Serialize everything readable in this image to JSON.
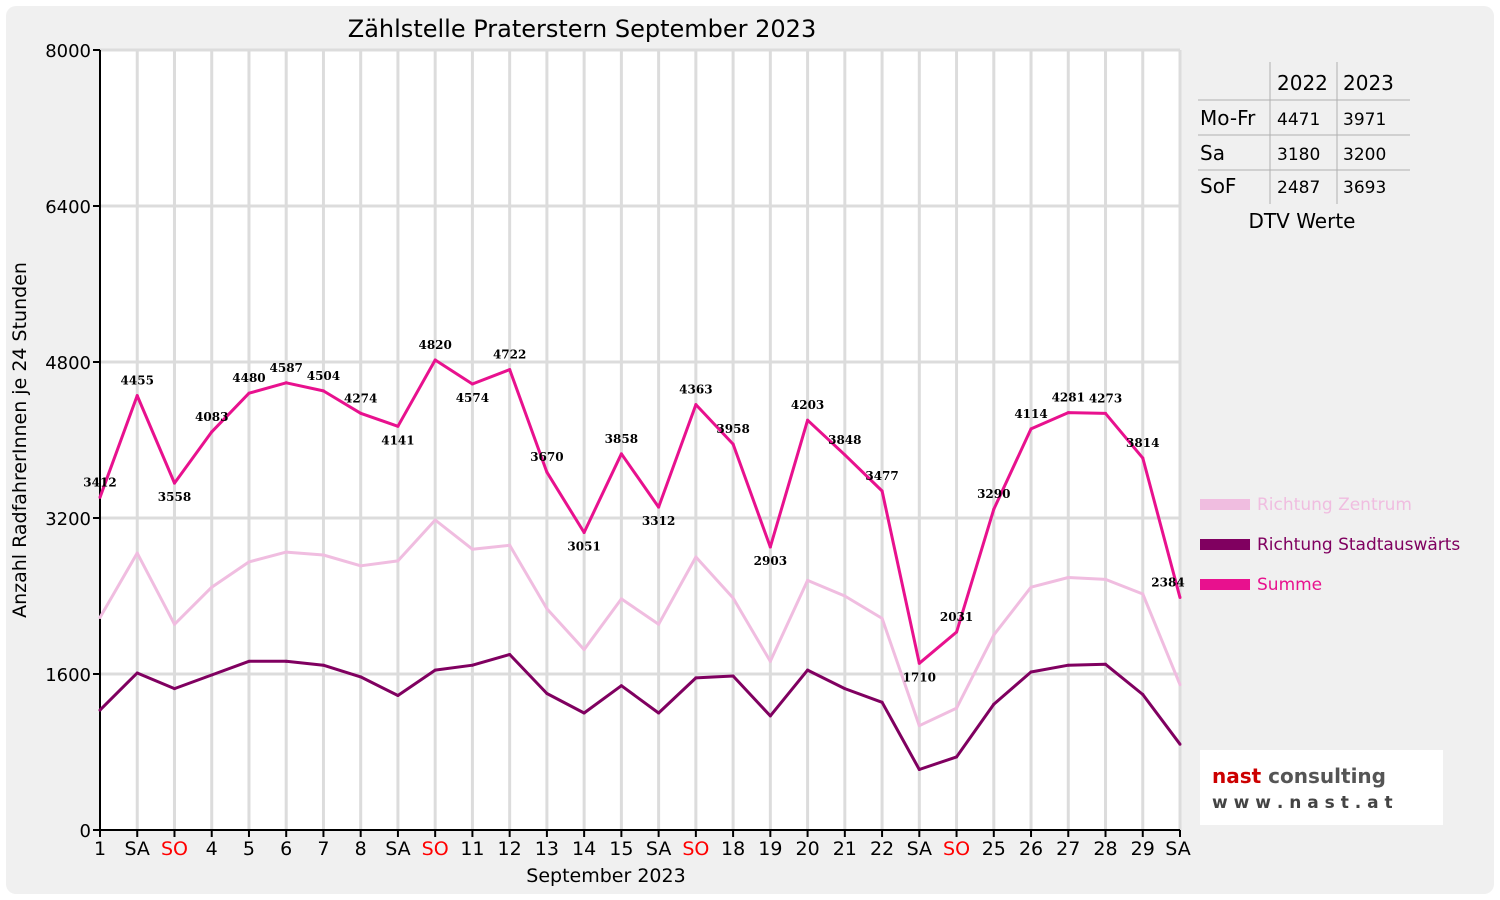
{
  "chart_data": {
    "type": "line",
    "title": "Zählstelle Praterstern September 2023",
    "xlabel": "September 2023",
    "ylabel": "Anzahl RadfahrerInnen je 24 Stunden",
    "ylim": [
      0,
      8000
    ],
    "yticks": [
      0,
      1600,
      3200,
      4800,
      6400,
      8000
    ],
    "grid": true,
    "legend_position": "right",
    "categories": [
      "1",
      "SA",
      "SO",
      "4",
      "5",
      "6",
      "7",
      "8",
      "SA",
      "SO",
      "11",
      "12",
      "13",
      "14",
      "15",
      "SA",
      "SO",
      "18",
      "19",
      "20",
      "21",
      "22",
      "SA",
      "SO",
      "25",
      "26",
      "27",
      "28",
      "29",
      "SA"
    ],
    "weekend_markers": {
      "SA": "#000000",
      "SO": "#ff0000"
    },
    "series": [
      {
        "name": "Richtung Zentrum",
        "color": "#f0bde0",
        "values": [
          2180,
          2840,
          2110,
          2490,
          2750,
          2850,
          2820,
          2710,
          2760,
          3180,
          2880,
          2920,
          2270,
          1850,
          2370,
          2110,
          2800,
          2380,
          1730,
          2560,
          2400,
          2170,
          1070,
          1250,
          2000,
          2490,
          2590,
          2570,
          2420,
          1490
        ]
      },
      {
        "name": "Richtung Stadtauswärts",
        "color": "#800060",
        "values": [
          1230,
          1610,
          1450,
          1590,
          1730,
          1730,
          1690,
          1570,
          1380,
          1640,
          1690,
          1800,
          1400,
          1200,
          1480,
          1200,
          1560,
          1580,
          1170,
          1640,
          1450,
          1310,
          620,
          750,
          1290,
          1620,
          1690,
          1700,
          1390,
          880
        ]
      },
      {
        "name": "Summe",
        "color": "#e8118e",
        "values": [
          3412,
          4455,
          3558,
          4083,
          4480,
          4587,
          4504,
          4274,
          4141,
          4820,
          4574,
          4722,
          3670,
          3051,
          3858,
          3312,
          4363,
          3958,
          2903,
          4203,
          3848,
          3477,
          1710,
          2031,
          3290,
          4114,
          4281,
          4273,
          3814,
          2384
        ]
      }
    ],
    "data_labels": [
      "3412",
      "4455",
      "3558",
      "4083",
      "4480",
      "4587",
      "4504",
      "4274",
      "4141",
      "4820",
      "4574",
      "4722",
      "3670",
      "3051",
      "3858",
      "3312",
      "4363",
      "3958",
      "2903",
      "4203",
      "3848",
      "3477",
      "1710",
      "2031",
      "3290",
      "4114",
      "4281",
      "4273",
      "3814",
      "2384"
    ]
  },
  "table": {
    "headers": [
      "",
      "2022",
      "2023"
    ],
    "rows": [
      [
        "Mo-Fr",
        "4471",
        "3971"
      ],
      [
        "Sa",
        "3180",
        "3200"
      ],
      [
        "SoF",
        "2487",
        "3693"
      ]
    ],
    "caption": "DTV Werte"
  },
  "logo": {
    "brand": "nast consulting",
    "url": "w w w . n a s t . a t",
    "colors": {
      "nast": "#cc0000",
      "consulting": "#555555",
      "url": "#444444"
    }
  }
}
